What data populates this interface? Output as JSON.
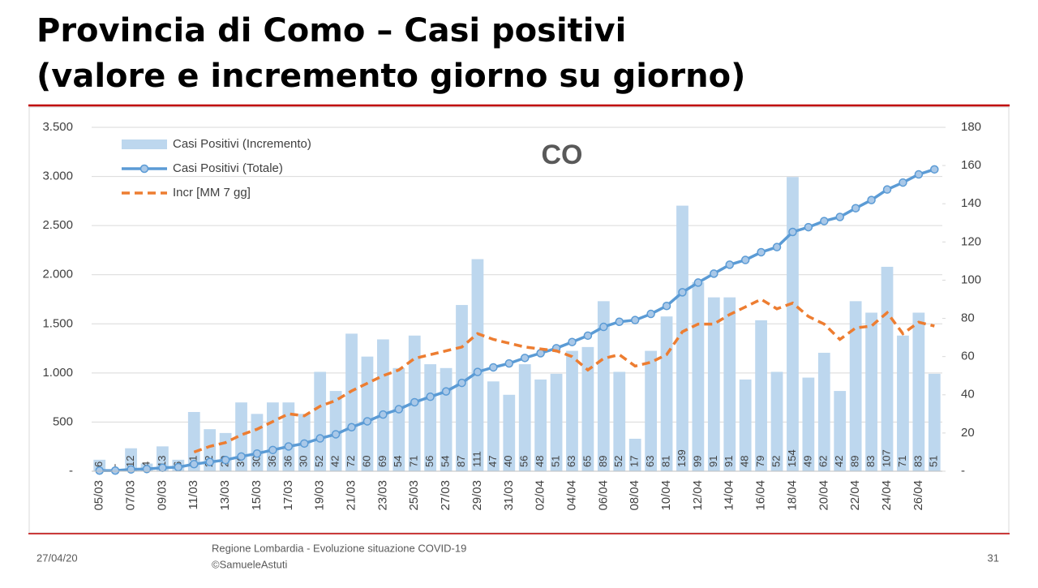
{
  "title": [
    "Provincia di Como – Casi positivi",
    "(valore e incremento giorno su giorno)"
  ],
  "footer": {
    "date": "27/04/20",
    "source": "Regione Lombardia - Evoluzione situazione COVID-19",
    "author": "©SamueleAstuti",
    "page": "31"
  },
  "chart_data": {
    "type": "combo",
    "annotation": "CO",
    "categories": [
      "05/03",
      null,
      "07/03",
      null,
      "09/03",
      null,
      "11/03",
      null,
      "13/03",
      null,
      "15/03",
      null,
      "17/03",
      null,
      "19/03",
      null,
      "21/03",
      null,
      "23/03",
      null,
      "25/03",
      null,
      "27/03",
      null,
      "29/03",
      null,
      "31/03",
      null,
      "02/04",
      null,
      "04/04",
      null,
      "06/04",
      null,
      "08/04",
      null,
      "10/04",
      null,
      "12/04",
      null,
      "14/04",
      null,
      "16/04",
      null,
      "18/04",
      null,
      "20/04",
      null,
      "22/04",
      null,
      "24/04",
      null,
      "26/04",
      null
    ],
    "ylim": [
      0,
      3500
    ],
    "yticks": [
      {
        "value": 0,
        "label": "-"
      },
      {
        "value": 500,
        "label": "500"
      },
      {
        "value": 1000,
        "label": "1.000"
      },
      {
        "value": 1500,
        "label": "1.500"
      },
      {
        "value": 2000,
        "label": "2.000"
      },
      {
        "value": 2500,
        "label": "2.500"
      },
      {
        "value": 3000,
        "label": "3.000"
      },
      {
        "value": 3500,
        "label": "3.500"
      }
    ],
    "y2lim": [
      0,
      180
    ],
    "y2ticks": [
      {
        "value": 0,
        "label": "-"
      },
      20,
      40,
      60,
      80,
      100,
      120,
      140,
      160,
      180
    ],
    "legend": "top-left",
    "series": [
      {
        "name": "Casi Positivi (Incremento)",
        "type": "bar",
        "axis": "y2",
        "color": "#bdd7ee",
        "values": [
          6,
          0,
          12,
          4,
          13,
          6,
          31,
          22,
          20,
          36,
          30,
          36,
          36,
          30,
          52,
          42,
          72,
          60,
          69,
          54,
          71,
          56,
          54,
          87,
          111,
          47,
          40,
          56,
          48,
          51,
          63,
          65,
          89,
          52,
          17,
          63,
          81,
          139,
          99,
          91,
          91,
          48,
          79,
          52,
          154,
          49,
          62,
          42,
          89,
          83,
          107,
          71,
          83,
          51
        ],
        "value_labels": [
          "6",
          "-",
          "12",
          "4",
          "13",
          "6",
          "31",
          "22",
          "20",
          "36",
          "30",
          "36",
          "36",
          "30",
          "52",
          "42",
          "72",
          "60",
          "69",
          "54",
          "71",
          "56",
          "54",
          "87",
          "111",
          "47",
          "40",
          "56",
          "48",
          "51",
          "63",
          "65",
          "89",
          "52",
          "17",
          "63",
          "81",
          "139",
          "99",
          "91",
          "91",
          "48",
          "79",
          "52",
          "154",
          "49",
          "62",
          "42",
          "89",
          "83",
          "107",
          "71",
          "83",
          "51"
        ]
      },
      {
        "name": "Casi Positivi (Totale)",
        "type": "line",
        "markers": true,
        "color": "#5b9bd5",
        "values": [
          6,
          6,
          18,
          22,
          35,
          41,
          72,
          94,
          114,
          150,
          180,
          216,
          252,
          282,
          334,
          376,
          448,
          508,
          577,
          631,
          702,
          758,
          812,
          899,
          1010,
          1057,
          1097,
          1153,
          1201,
          1252,
          1315,
          1380,
          1469,
          1521,
          1538,
          1601,
          1682,
          1821,
          1920,
          2011,
          2102,
          2150,
          2229,
          2281,
          2435,
          2484,
          2546,
          2588,
          2677,
          2760,
          2867,
          2938,
          3021,
          3072
        ]
      },
      {
        "name": "Incr [MM 7 gg]",
        "type": "line",
        "dashed": true,
        "axis": "y2",
        "color": "#ed7d31",
        "values": [
          null,
          null,
          null,
          null,
          null,
          null,
          10,
          13,
          15,
          19,
          22,
          26,
          30,
          29,
          34,
          37,
          42,
          46,
          50,
          53,
          59,
          61,
          63,
          65,
          72,
          69,
          67,
          65,
          64,
          63,
          60,
          53,
          59,
          61,
          55,
          57,
          61,
          73,
          77,
          77,
          82,
          86,
          90,
          85,
          88,
          81,
          77,
          69,
          75,
          76,
          83,
          72,
          78,
          76
        ]
      }
    ]
  }
}
